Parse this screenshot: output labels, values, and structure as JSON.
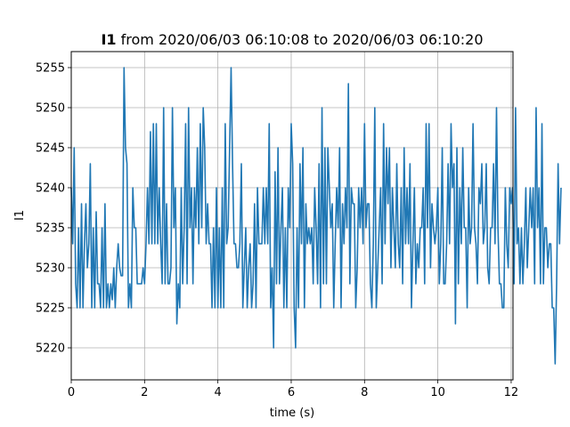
{
  "chart_data": {
    "type": "line",
    "title_bold": "I1",
    "title_rest": " from 2020/06/03 06:10:08 to 2020/06/03 06:10:20",
    "xlabel": "time (s)",
    "ylabel": "I1",
    "xlim": [
      0,
      12.05
    ],
    "ylim": [
      5216,
      5257
    ],
    "xticks": [
      0,
      2,
      4,
      6,
      8,
      10,
      12
    ],
    "yticks": [
      5220,
      5225,
      5230,
      5235,
      5240,
      5245,
      5250,
      5255
    ],
    "grid": true,
    "line_color": "#1f77b4",
    "x_start": 0,
    "x_step": 0.04,
    "series": [
      {
        "values": [
          5240,
          5233,
          5245,
          5228,
          5225,
          5235,
          5225,
          5238,
          5225,
          5233,
          5238,
          5230,
          5233,
          5243,
          5225,
          5235,
          5225,
          5237,
          5228,
          5228,
          5225,
          5235,
          5225,
          5238,
          5225,
          5228,
          5225,
          5228,
          5226,
          5230,
          5225,
          5230,
          5233,
          5230,
          5229,
          5229,
          5255,
          5245,
          5243,
          5225,
          5228,
          5225,
          5240,
          5235,
          5235,
          5228,
          5228,
          5228,
          5228,
          5230,
          5228,
          5233,
          5240,
          5233,
          5247,
          5233,
          5248,
          5233,
          5248,
          5233,
          5240,
          5233,
          5228,
          5250,
          5228,
          5238,
          5228,
          5228,
          5230,
          5250,
          5235,
          5240,
          5223,
          5228,
          5225,
          5240,
          5228,
          5235,
          5248,
          5228,
          5250,
          5235,
          5240,
          5228,
          5240,
          5235,
          5245,
          5233,
          5248,
          5235,
          5250,
          5245,
          5233,
          5238,
          5233,
          5233,
          5225,
          5235,
          5225,
          5240,
          5225,
          5235,
          5225,
          5240,
          5225,
          5248,
          5233,
          5235,
          5245,
          5255,
          5243,
          5233,
          5233,
          5230,
          5230,
          5233,
          5243,
          5225,
          5230,
          5235,
          5225,
          5230,
          5233,
          5225,
          5228,
          5238,
          5225,
          5240,
          5233,
          5233,
          5233,
          5240,
          5233,
          5240,
          5233,
          5248,
          5225,
          5230,
          5220,
          5242,
          5228,
          5245,
          5228,
          5235,
          5240,
          5225,
          5235,
          5225,
          5240,
          5235,
          5248,
          5243,
          5225,
          5220,
          5235,
          5225,
          5243,
          5233,
          5245,
          5225,
          5238,
          5233,
          5235,
          5233,
          5235,
          5228,
          5240,
          5235,
          5228,
          5243,
          5225,
          5250,
          5228,
          5245,
          5228,
          5245,
          5240,
          5235,
          5238,
          5225,
          5233,
          5240,
          5235,
          5245,
          5225,
          5238,
          5233,
          5240,
          5235,
          5253,
          5228,
          5240,
          5238,
          5238,
          5225,
          5230,
          5240,
          5235,
          5240,
          5233,
          5248,
          5235,
          5238,
          5238,
          5228,
          5225,
          5233,
          5250,
          5225,
          5230,
          5235,
          5240,
          5228,
          5248,
          5233,
          5245,
          5238,
          5245,
          5230,
          5240,
          5235,
          5230,
          5243,
          5233,
          5230,
          5240,
          5228,
          5245,
          5233,
          5240,
          5233,
          5243,
          5225,
          5233,
          5240,
          5228,
          5233,
          5230,
          5235,
          5235,
          5240,
          5228,
          5248,
          5235,
          5248,
          5230,
          5238,
          5235,
          5233,
          5235,
          5240,
          5228,
          5233,
          5245,
          5228,
          5228,
          5233,
          5243,
          5233,
          5248,
          5240,
          5243,
          5223,
          5245,
          5228,
          5240,
          5233,
          5245,
          5235,
          5235,
          5225,
          5240,
          5233,
          5235,
          5248,
          5235,
          5233,
          5228,
          5240,
          5238,
          5243,
          5233,
          5235,
          5243,
          5230,
          5228,
          5235,
          5235,
          5243,
          5233,
          5250,
          5235,
          5228,
          5228,
          5225,
          5225,
          5240,
          5233,
          5230,
          5240,
          5238,
          5240,
          5228,
          5250,
          5233,
          5235,
          5228,
          5235,
          5228,
          5233,
          5240,
          5230,
          5235,
          5240,
          5235,
          5240,
          5228,
          5250,
          5235,
          5240,
          5228,
          5248,
          5228,
          5235,
          5235,
          5230,
          5233,
          5233,
          5225,
          5225,
          5218,
          5228,
          5243,
          5233,
          5240
        ]
      }
    ]
  }
}
